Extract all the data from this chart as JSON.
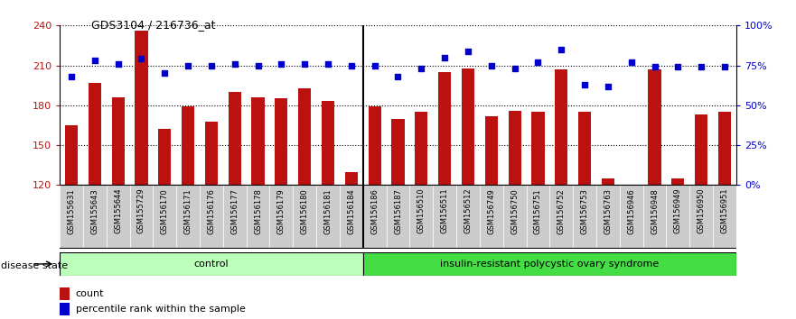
{
  "title": "GDS3104 / 216736_at",
  "samples": [
    "GSM155631",
    "GSM155643",
    "GSM155644",
    "GSM155729",
    "GSM156170",
    "GSM156171",
    "GSM156176",
    "GSM156177",
    "GSM156178",
    "GSM156179",
    "GSM156180",
    "GSM156181",
    "GSM156184",
    "GSM156186",
    "GSM156187",
    "GSM156510",
    "GSM156511",
    "GSM156512",
    "GSM156749",
    "GSM156750",
    "GSM156751",
    "GSM156752",
    "GSM156753",
    "GSM156763",
    "GSM156946",
    "GSM156948",
    "GSM156949",
    "GSM156950",
    "GSM156951"
  ],
  "bar_values": [
    165,
    197,
    186,
    236,
    162,
    179,
    168,
    190,
    186,
    185,
    193,
    183,
    130,
    179,
    170,
    175,
    205,
    208,
    172,
    176,
    175,
    207,
    175,
    125,
    120,
    207,
    125,
    173,
    175
  ],
  "percentile_values": [
    68,
    78,
    76,
    79,
    70,
    75,
    75,
    76,
    75,
    76,
    76,
    76,
    75,
    75,
    68,
    73,
    80,
    84,
    75,
    73,
    77,
    85,
    63,
    62,
    77,
    74,
    74,
    74,
    74
  ],
  "control_count": 13,
  "disease_count": 16,
  "bar_color": "#BB1111",
  "dot_color": "#0000CC",
  "ylim_left": [
    120,
    240
  ],
  "ylim_right": [
    0,
    100
  ],
  "yticks_left": [
    120,
    150,
    180,
    210,
    240
  ],
  "yticks_right": [
    0,
    25,
    50,
    75,
    100
  ],
  "ytick_labels_right": [
    "0%",
    "25%",
    "50%",
    "75%",
    "100%"
  ],
  "control_label": "control",
  "disease_label": "insulin-resistant polycystic ovary syndrome",
  "disease_state_label": "disease state",
  "legend_count_label": "count",
  "legend_percentile_label": "percentile rank within the sample",
  "control_color": "#BBFFBB",
  "disease_color": "#44DD44",
  "bar_width": 0.55,
  "ymin": 120
}
